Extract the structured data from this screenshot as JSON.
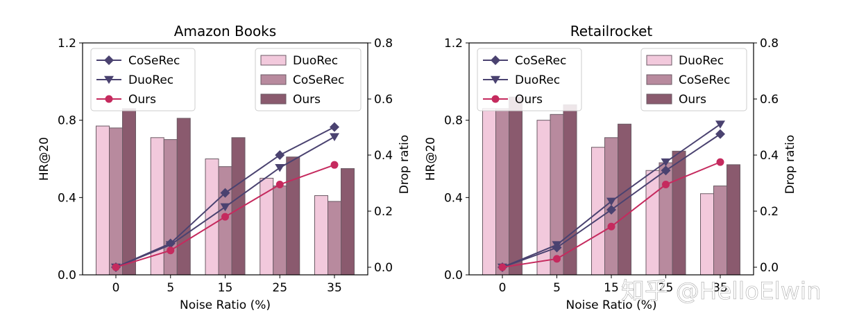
{
  "watermark": "知乎 @HelloElwin",
  "colors": {
    "bar_duorec": "#f2c9dc",
    "bar_cosrec": "#b88a9e",
    "bar_ours": "#8a5a6e",
    "line_cosrec": "#4a4270",
    "line_duorec": "#4a4270",
    "line_ours": "#c52a5e"
  },
  "chart_data": [
    {
      "type": "bar+line",
      "title": "Amazon Books",
      "xlabel": "Noise Ratio (%)",
      "ylabel": "HR@20",
      "ylabel_right": "Drop ratio",
      "categories": [
        "0",
        "5",
        "15",
        "25",
        "35"
      ],
      "ylim": [
        0,
        1.2
      ],
      "yticks": [
        "0.0",
        "0.4",
        "0.8",
        "1.2"
      ],
      "ylim_right": [
        0,
        0.8
      ],
      "yticks_right": [
        "0.0",
        "0.2",
        "0.4",
        "0.6",
        "0.8"
      ],
      "bar_series": [
        {
          "name": "DuoRec",
          "values": [
            0.77,
            0.71,
            0.6,
            0.5,
            0.41
          ]
        },
        {
          "name": "CoSeRec",
          "values": [
            0.76,
            0.7,
            0.56,
            0.46,
            0.38
          ]
        },
        {
          "name": "Ours",
          "values": [
            0.86,
            0.81,
            0.71,
            0.61,
            0.55
          ]
        }
      ],
      "line_series": [
        {
          "name": "CoSeRec",
          "marker": "diamond",
          "values": [
            0.0,
            0.085,
            0.265,
            0.4,
            0.5
          ]
        },
        {
          "name": "DuoRec",
          "marker": "triangle-down",
          "values": [
            0.0,
            0.08,
            0.215,
            0.355,
            0.465
          ]
        },
        {
          "name": "Ours",
          "marker": "circle",
          "values": [
            0.0,
            0.06,
            0.18,
            0.295,
            0.365
          ]
        }
      ]
    },
    {
      "type": "bar+line",
      "title": "Retailrocket",
      "xlabel": "Noise Ratio (%)",
      "ylabel": "HR@20",
      "ylabel_right": "Drop ratio",
      "categories": [
        "0",
        "5",
        "15",
        "25",
        "35"
      ],
      "ylim": [
        0,
        1.2
      ],
      "yticks": [
        "0.0",
        "0.4",
        "0.8",
        "1.2"
      ],
      "ylim_right": [
        0,
        0.8
      ],
      "yticks_right": [
        "0.0",
        "0.2",
        "0.4",
        "0.6",
        "0.8"
      ],
      "bar_series": [
        {
          "name": "DuoRec",
          "values": [
            0.86,
            0.8,
            0.66,
            0.54,
            0.42
          ]
        },
        {
          "name": "CoSeRec",
          "values": [
            0.86,
            0.83,
            0.71,
            0.58,
            0.46
          ]
        },
        {
          "name": "Ours",
          "values": [
            0.92,
            0.88,
            0.78,
            0.64,
            0.57
          ]
        }
      ],
      "line_series": [
        {
          "name": "CoSeRec",
          "marker": "diamond",
          "values": [
            0.0,
            0.07,
            0.205,
            0.345,
            0.475
          ]
        },
        {
          "name": "DuoRec",
          "marker": "triangle-down",
          "values": [
            0.0,
            0.08,
            0.235,
            0.375,
            0.51
          ]
        },
        {
          "name": "Ours",
          "marker": "circle",
          "values": [
            0.0,
            0.03,
            0.145,
            0.295,
            0.375
          ]
        }
      ]
    }
  ]
}
